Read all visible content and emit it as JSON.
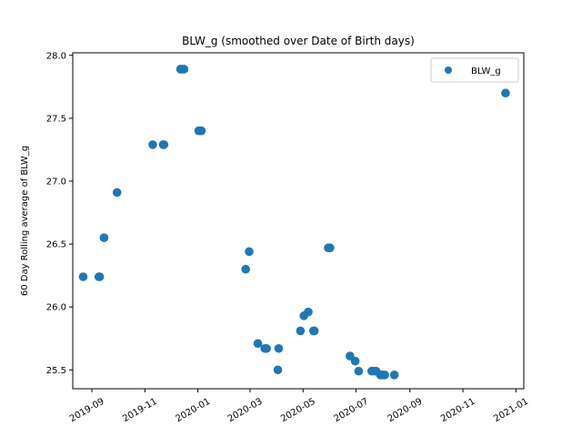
{
  "chart_data": {
    "type": "scatter",
    "title": "BLW_g (smoothed over Date of Birth days)",
    "xlabel": "",
    "ylabel": "60 Day Rolling average of BLW_g",
    "xlim": [
      "2019-08-10",
      "2021-01-10"
    ],
    "ylim": [
      25.35,
      28.02
    ],
    "x_ticks": [
      "2019-09-01",
      "2019-11-01",
      "2020-01-01",
      "2020-03-01",
      "2020-05-01",
      "2020-07-01",
      "2020-09-01",
      "2020-11-01",
      "2021-01-01"
    ],
    "x_tick_labels": [
      "2019-09",
      "2019-11",
      "2020-01",
      "2020-03",
      "2020-05",
      "2020-07",
      "2020-09",
      "2020-11",
      "2021-01"
    ],
    "y_ticks": [
      25.5,
      26.0,
      26.5,
      27.0,
      27.5,
      28.0
    ],
    "y_tick_labels": [
      "25.5",
      "26.0",
      "26.5",
      "27.0",
      "27.5",
      "28.0"
    ],
    "grid": false,
    "legend_position": "top-right",
    "series": [
      {
        "name": "BLW_g",
        "color": "#1f77b4",
        "points": [
          {
            "x": "2019-08-22",
            "y": 26.24
          },
          {
            "x": "2019-09-09",
            "y": 26.24
          },
          {
            "x": "2019-09-10",
            "y": 26.24
          },
          {
            "x": "2019-09-15",
            "y": 26.55
          },
          {
            "x": "2019-09-30",
            "y": 26.91
          },
          {
            "x": "2019-11-10",
            "y": 27.29
          },
          {
            "x": "2019-11-22",
            "y": 27.29
          },
          {
            "x": "2019-11-23",
            "y": 27.29
          },
          {
            "x": "2019-12-12",
            "y": 27.89
          },
          {
            "x": "2019-12-14",
            "y": 27.89
          },
          {
            "x": "2019-12-16",
            "y": 27.89
          },
          {
            "x": "2020-01-02",
            "y": 27.4
          },
          {
            "x": "2020-01-04",
            "y": 27.4
          },
          {
            "x": "2020-01-05",
            "y": 27.4
          },
          {
            "x": "2020-02-25",
            "y": 26.3
          },
          {
            "x": "2020-02-29",
            "y": 26.44
          },
          {
            "x": "2020-03-10",
            "y": 25.71
          },
          {
            "x": "2020-03-18",
            "y": 25.67
          },
          {
            "x": "2020-03-20",
            "y": 25.67
          },
          {
            "x": "2020-04-02",
            "y": 25.5
          },
          {
            "x": "2020-04-03",
            "y": 25.67
          },
          {
            "x": "2020-04-28",
            "y": 25.81
          },
          {
            "x": "2020-05-02",
            "y": 25.93
          },
          {
            "x": "2020-05-07",
            "y": 25.96
          },
          {
            "x": "2020-05-13",
            "y": 25.81
          },
          {
            "x": "2020-05-14",
            "y": 25.81
          },
          {
            "x": "2020-05-30",
            "y": 26.47
          },
          {
            "x": "2020-06-01",
            "y": 26.47
          },
          {
            "x": "2020-06-24",
            "y": 25.61
          },
          {
            "x": "2020-06-30",
            "y": 25.57
          },
          {
            "x": "2020-07-04",
            "y": 25.49
          },
          {
            "x": "2020-07-19",
            "y": 25.49
          },
          {
            "x": "2020-07-22",
            "y": 25.49
          },
          {
            "x": "2020-07-24",
            "y": 25.49
          },
          {
            "x": "2020-07-29",
            "y": 25.46
          },
          {
            "x": "2020-07-31",
            "y": 25.46
          },
          {
            "x": "2020-08-03",
            "y": 25.46
          },
          {
            "x": "2020-08-14",
            "y": 25.46
          },
          {
            "x": "2020-12-20",
            "y": 27.7
          }
        ]
      }
    ]
  }
}
